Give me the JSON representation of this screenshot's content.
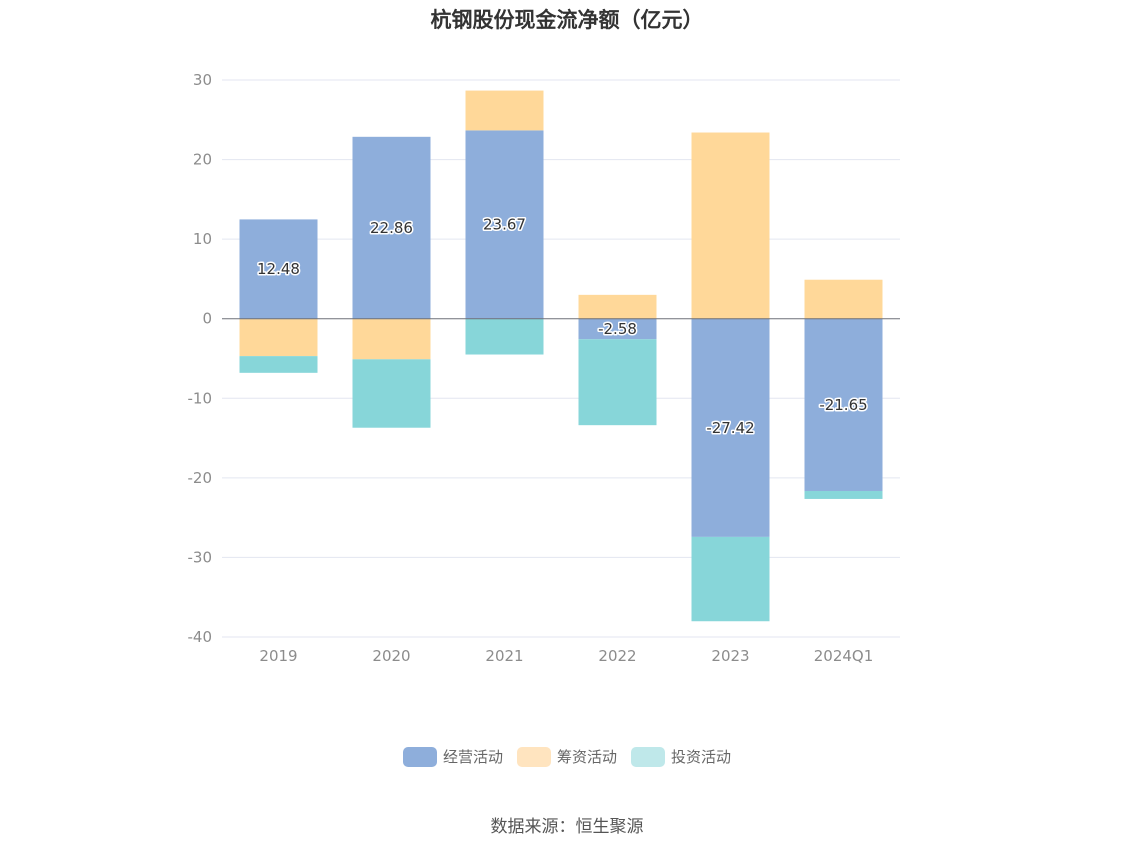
{
  "chart_data": {
    "type": "bar",
    "title": "杭钢股份现金流净额（亿元）",
    "categories": [
      "2019",
      "2020",
      "2021",
      "2022",
      "2023",
      "2024Q1"
    ],
    "ylim": [
      -40,
      30
    ],
    "yticks": [
      30,
      20,
      10,
      0,
      -10,
      -20,
      -30,
      -40
    ],
    "grid": true,
    "legend_position": "bottom",
    "series": [
      {
        "name": "经营活动",
        "color": "#8eaedb",
        "values": [
          12.48,
          22.86,
          23.67,
          -2.58,
          -27.42,
          -21.65
        ],
        "show_labels": true
      },
      {
        "name": "筹资活动",
        "color": "#ffd899",
        "values": [
          -4.7,
          -5.1,
          5.0,
          3.0,
          23.4,
          4.9
        ],
        "show_labels": false
      },
      {
        "name": "投资活动",
        "color": "#87d6d9",
        "values": [
          -2.1,
          -8.6,
          -4.5,
          -10.8,
          -10.6,
          -1.0
        ],
        "show_labels": false
      }
    ]
  },
  "legend": [
    {
      "label": "经营活动",
      "color": "#8eaedb"
    },
    {
      "label": "筹资活动",
      "color": "#ffe4bf"
    },
    {
      "label": "投资活动",
      "color": "#bfe8ea"
    }
  ],
  "source": "数据来源：恒生聚源"
}
